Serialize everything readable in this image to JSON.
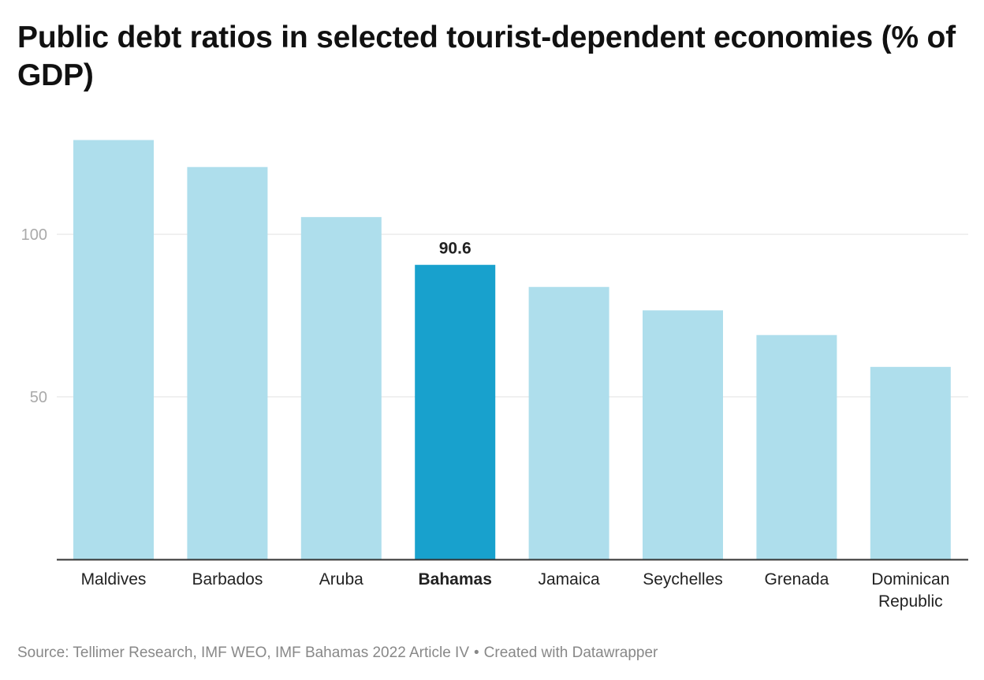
{
  "title": "Public debt ratios in selected tourist-dependent economies (% of GDP)",
  "source": {
    "text": "Source: Tellimer Research, IMF WEO, IMF Bahamas 2022 Article IV",
    "separator": "•",
    "credit": "Created with Datawrapper"
  },
  "colors": {
    "bar": "#aedeec",
    "highlight_bar": "#18a1cd",
    "gridline": "#e0e0e0",
    "axis": "#333333",
    "tick_text": "#aaaaaa",
    "label_text": "#222222"
  },
  "chart_data": {
    "type": "bar",
    "categories": [
      [
        "Maldives"
      ],
      [
        "Barbados"
      ],
      [
        "Aruba"
      ],
      [
        "Bahamas"
      ],
      [
        "Jamaica"
      ],
      [
        "Seychelles"
      ],
      [
        "Grenada"
      ],
      [
        "Dominican",
        "Republic"
      ]
    ],
    "values": [
      129,
      120.7,
      105.3,
      90.6,
      83.8,
      76.6,
      69,
      59.2
    ],
    "highlight_index": 3,
    "data_labels": [
      {
        "index": 3,
        "text": "90.6"
      }
    ],
    "yticks": [
      50,
      100
    ],
    "ylim": [
      0,
      135
    ],
    "grid": true,
    "xlabel": "",
    "ylabel": ""
  }
}
